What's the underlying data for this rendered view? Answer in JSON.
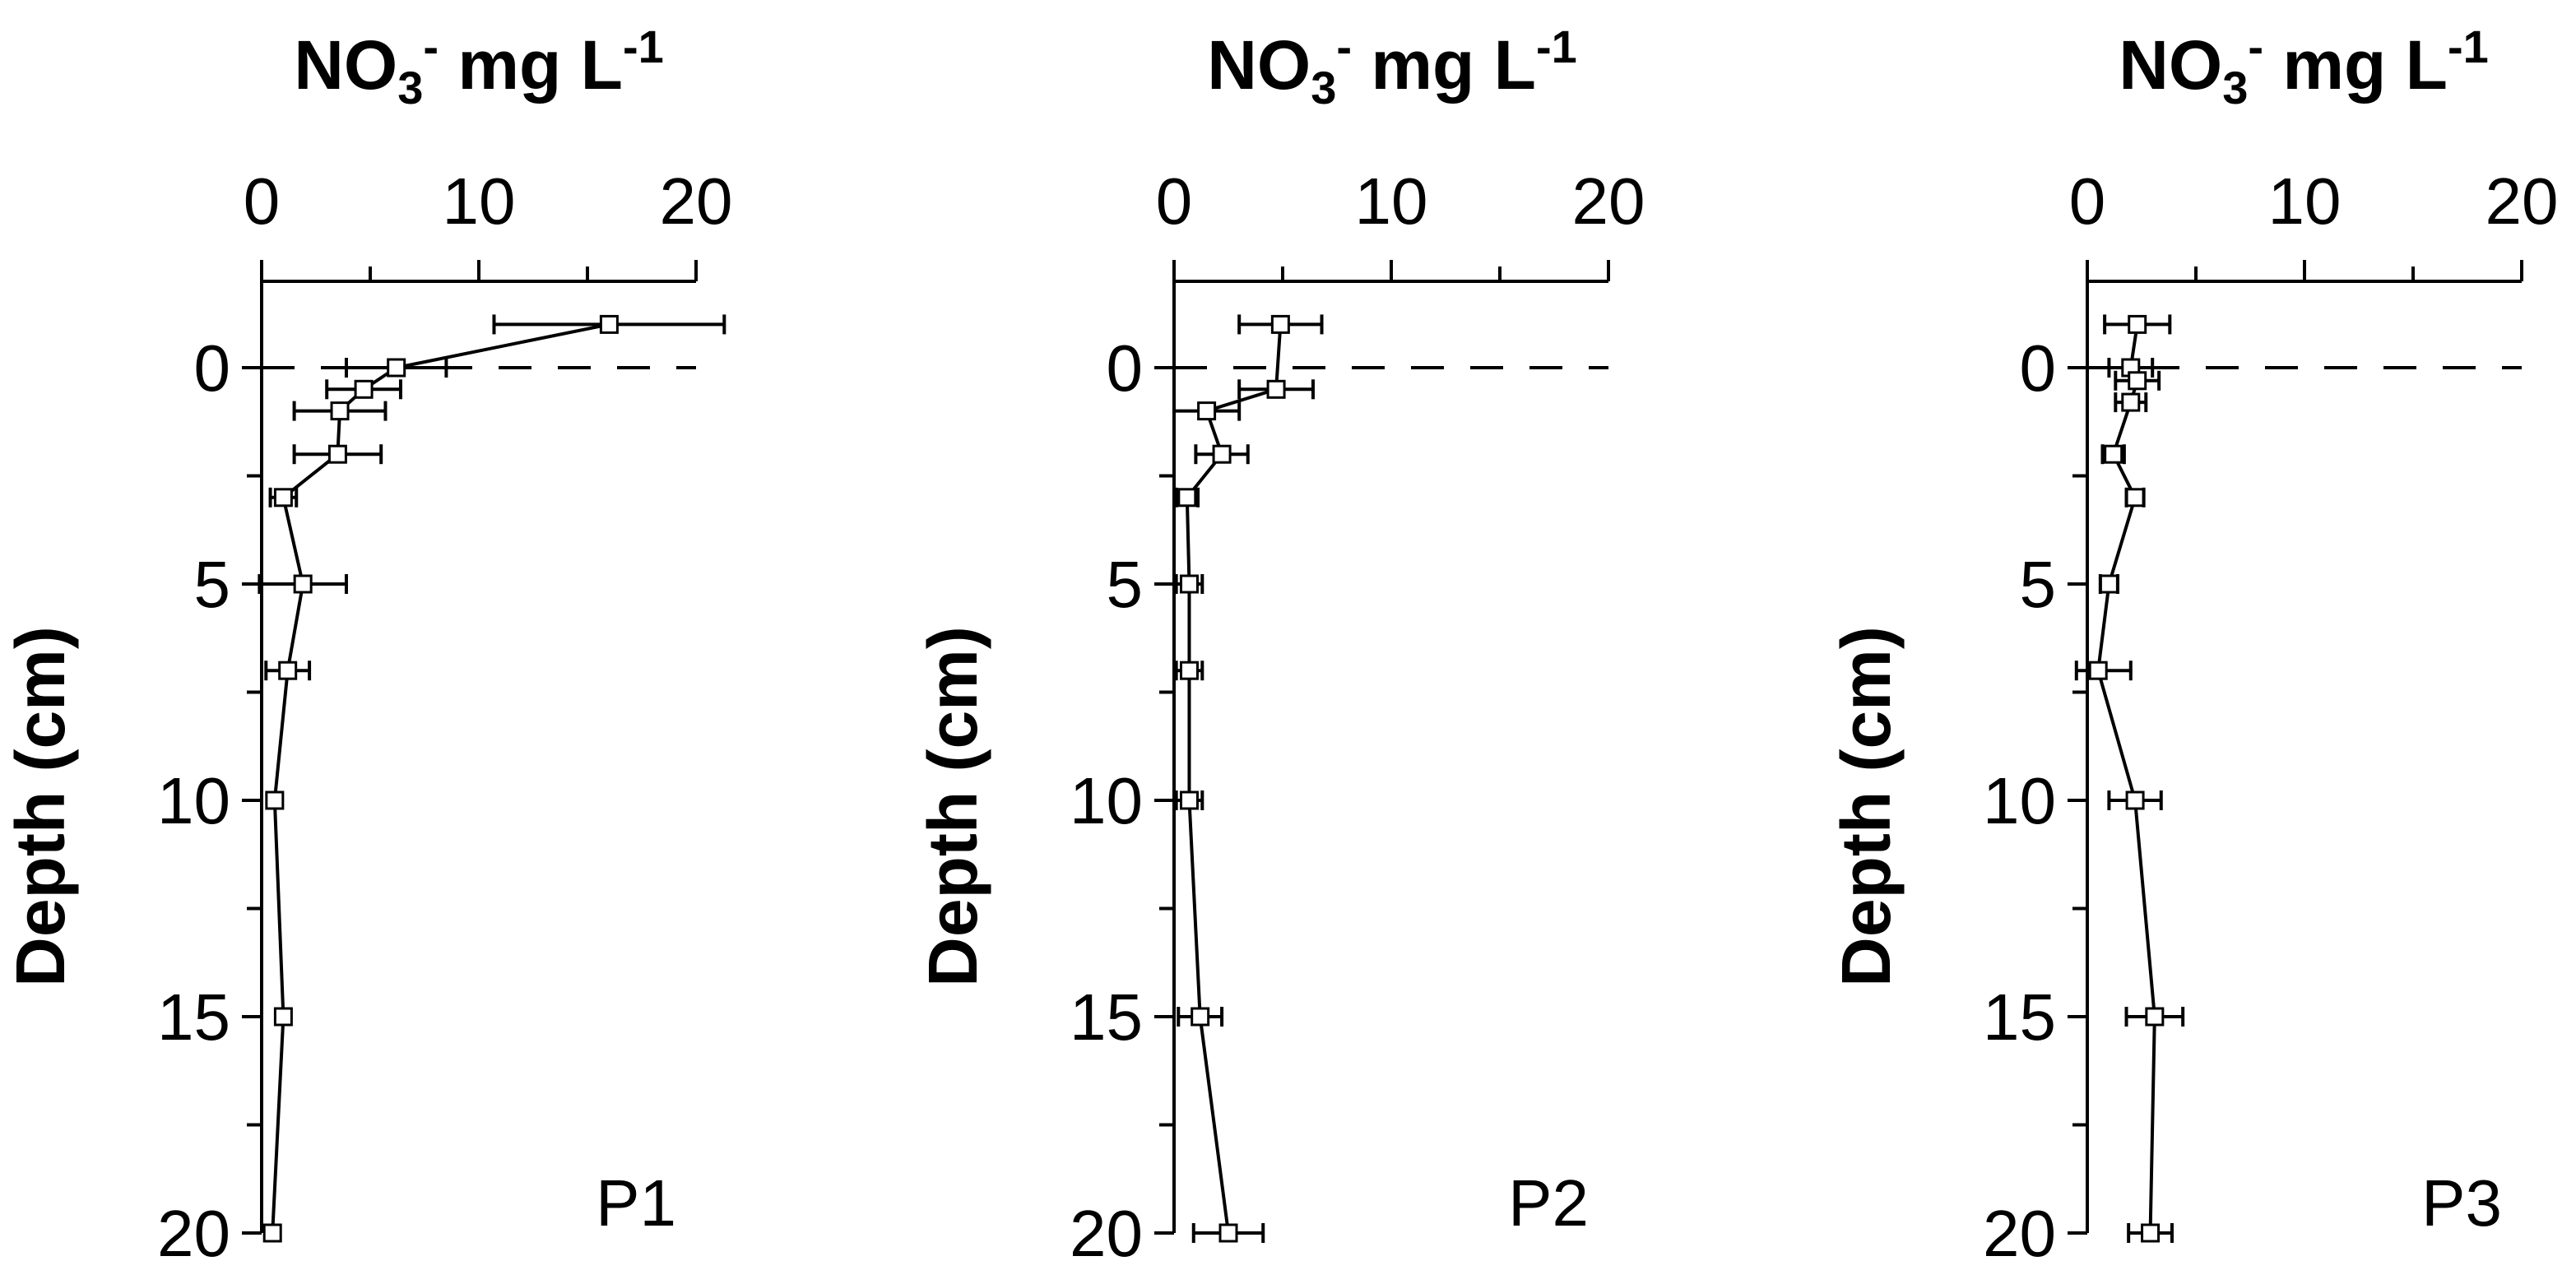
{
  "chart_data": [
    {
      "type": "line",
      "panel_label": "P1",
      "title": {
        "main": "NO",
        "sub": "3",
        "sup1": "-",
        "unit": " mg L",
        "sup2": "-1"
      },
      "xlabel": "NO3- mg L-1",
      "ylabel": "Depth (cm)",
      "xlim": [
        0,
        20
      ],
      "ylim": [
        -2,
        20
      ],
      "x_ticks": [
        0,
        10,
        20
      ],
      "x_tick_labels": [
        "0",
        "10",
        "20"
      ],
      "y_ticks": [
        0,
        5,
        10,
        15,
        20
      ],
      "y_tick_labels": [
        "0",
        "5",
        "10",
        "15",
        "20"
      ],
      "reference_line_depth": 0,
      "series": [
        {
          "points": [
            {
              "x": 16.0,
              "y": -1.0,
              "err": 5.3
            },
            {
              "x": 6.2,
              "y": 0.0,
              "err": 2.3
            },
            {
              "x": 4.7,
              "y": 0.5,
              "err": 1.7
            },
            {
              "x": 3.6,
              "y": 1.0,
              "err": 2.1
            },
            {
              "x": 3.5,
              "y": 2.0,
              "err": 2.0
            },
            {
              "x": 1.0,
              "y": 3.0,
              "err": 0.6
            },
            {
              "x": 1.9,
              "y": 5.0,
              "err": 2.0
            },
            {
              "x": 1.2,
              "y": 7.0,
              "err": 1.0
            },
            {
              "x": 0.6,
              "y": 10.0,
              "err": 0.0
            },
            {
              "x": 1.0,
              "y": 15.0,
              "err": 0.0
            },
            {
              "x": 0.5,
              "y": 20.0,
              "err": 0.0
            }
          ]
        }
      ]
    },
    {
      "type": "line",
      "panel_label": "P2",
      "title": {
        "main": "NO",
        "sub": "3",
        "sup1": "-",
        "unit": " mg L",
        "sup2": "-1"
      },
      "xlabel": "NO3- mg L-1",
      "ylabel": "Depth (cm)",
      "xlim": [
        0,
        20
      ],
      "ylim": [
        -2,
        20
      ],
      "x_ticks": [
        0,
        10,
        20
      ],
      "x_tick_labels": [
        "0",
        "10",
        "20"
      ],
      "y_ticks": [
        0,
        5,
        10,
        15,
        20
      ],
      "y_tick_labels": [
        "0",
        "5",
        "10",
        "15",
        "20"
      ],
      "reference_line_depth": 0,
      "series": [
        {
          "points": [
            {
              "x": 4.9,
              "y": -1.0,
              "err": 1.9
            },
            {
              "x": 4.7,
              "y": 0.5,
              "err": 1.7
            },
            {
              "x": 1.5,
              "y": 1.0,
              "err": 1.5
            },
            {
              "x": 2.2,
              "y": 2.0,
              "err": 1.2
            },
            {
              "x": 0.6,
              "y": 3.0,
              "err": 0.5
            },
            {
              "x": 0.7,
              "y": 5.0,
              "err": 0.6
            },
            {
              "x": 0.7,
              "y": 7.0,
              "err": 0.6
            },
            {
              "x": 0.7,
              "y": 10.0,
              "err": 0.6
            },
            {
              "x": 1.2,
              "y": 15.0,
              "err": 1.0
            },
            {
              "x": 2.5,
              "y": 20.0,
              "err": 1.6
            }
          ]
        }
      ]
    },
    {
      "type": "line",
      "panel_label": "P3",
      "title": {
        "main": "NO",
        "sub": "3",
        "sup1": "-",
        "unit": " mg L",
        "sup2": "-1"
      },
      "xlabel": "NO3- mg L-1",
      "ylabel": "Depth (cm)",
      "xlim": [
        0,
        20
      ],
      "ylim": [
        -2,
        20
      ],
      "x_ticks": [
        0,
        10,
        20
      ],
      "x_tick_labels": [
        "0",
        "10",
        "20"
      ],
      "y_ticks": [
        0,
        5,
        10,
        15,
        20
      ],
      "y_tick_labels": [
        "0",
        "5",
        "10",
        "15",
        "20"
      ],
      "reference_line_depth": 0,
      "series": [
        {
          "points": [
            {
              "x": 2.3,
              "y": -1.0,
              "err": 1.5
            },
            {
              "x": 2.0,
              "y": 0.0,
              "err": 1.0
            },
            {
              "x": 2.3,
              "y": 0.3,
              "err": 1.0
            },
            {
              "x": 2.0,
              "y": 0.8,
              "err": 0.7
            },
            {
              "x": 1.2,
              "y": 2.0,
              "err": 0.5
            },
            {
              "x": 2.2,
              "y": 3.0,
              "err": 0.4
            },
            {
              "x": 1.0,
              "y": 5.0,
              "err": 0.4
            },
            {
              "x": 0.5,
              "y": 7.0,
              "err": 1.5
            },
            {
              "x": 2.2,
              "y": 10.0,
              "err": 1.2
            },
            {
              "x": 3.1,
              "y": 15.0,
              "err": 1.3
            },
            {
              "x": 2.9,
              "y": 20.0,
              "err": 1.0
            }
          ]
        }
      ]
    }
  ]
}
